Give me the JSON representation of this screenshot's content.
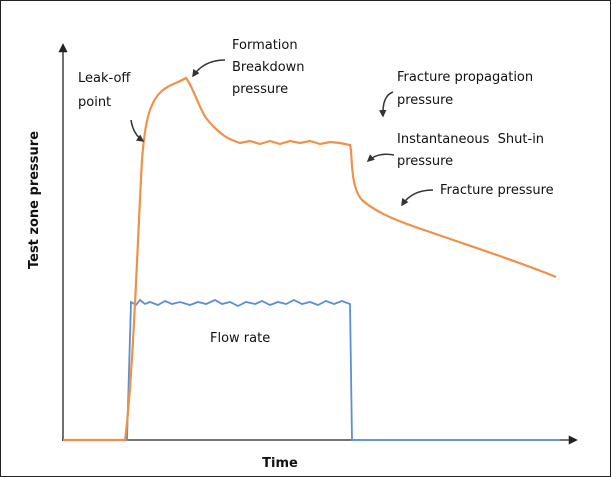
{
  "y_axis_label": "Test zone pressure",
  "x_axis_label": "Time",
  "annotations": [
    {
      "lines": [
        "Leak-off",
        "point"
      ]
    },
    {
      "lines": [
        "Formation",
        "Breakdown",
        "pressure"
      ]
    },
    {
      "lines": [
        "Fracture propagation",
        "pressure"
      ]
    },
    {
      "lines": [
        "Instantaneous  Shut-in",
        "pressure"
      ]
    },
    {
      "lines": [
        "Fracture pressure"
      ]
    },
    {
      "lines": [
        "Flow rate"
      ]
    }
  ]
}
